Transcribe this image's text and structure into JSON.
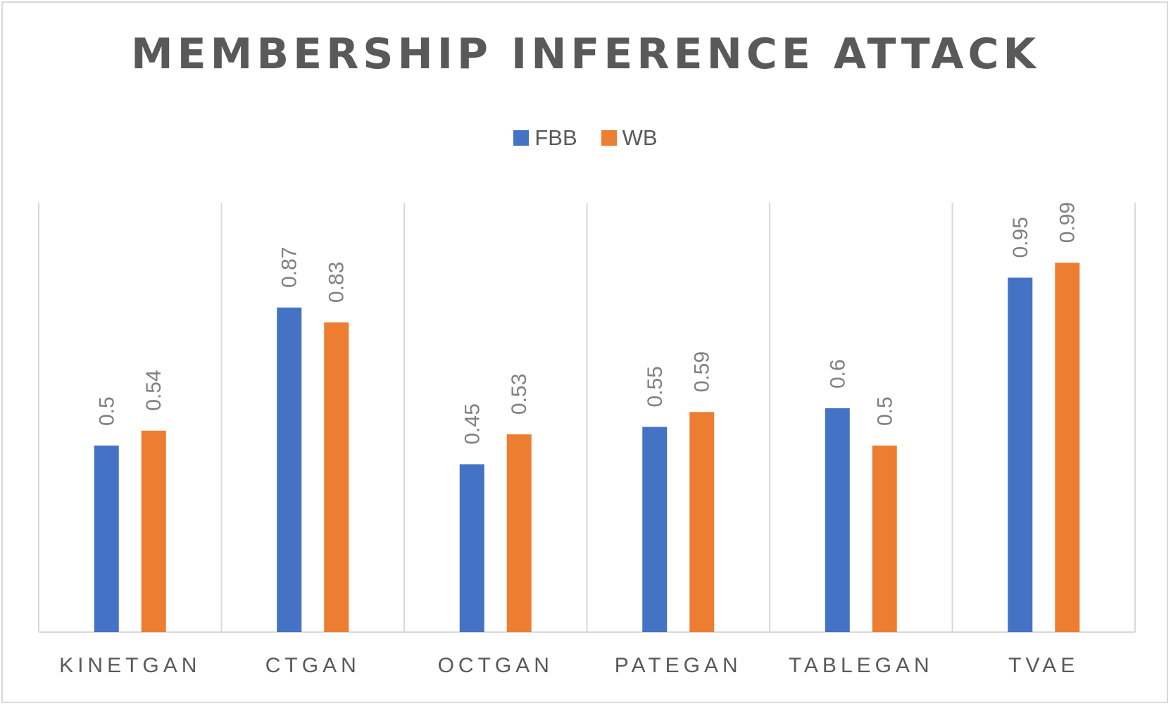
{
  "chart_data": {
    "type": "bar",
    "title": "MEMBERSHIP INFERENCE ATTACK",
    "categories": [
      "KINETGAN",
      "CTGAN",
      "OCTGAN",
      "PATEGAN",
      "TABLEGAN",
      "TVAE"
    ],
    "series": [
      {
        "name": "FBB",
        "color": "#4472c4",
        "values": [
          0.5,
          0.87,
          0.45,
          0.55,
          0.6,
          0.95
        ]
      },
      {
        "name": "WB",
        "color": "#ed7d31",
        "values": [
          0.54,
          0.83,
          0.53,
          0.59,
          0.5,
          0.99
        ]
      }
    ],
    "ylim": [
      0,
      1.2
    ],
    "grid": "vertical category separators",
    "legend_position": "top",
    "data_labels": "rotated above bars"
  }
}
